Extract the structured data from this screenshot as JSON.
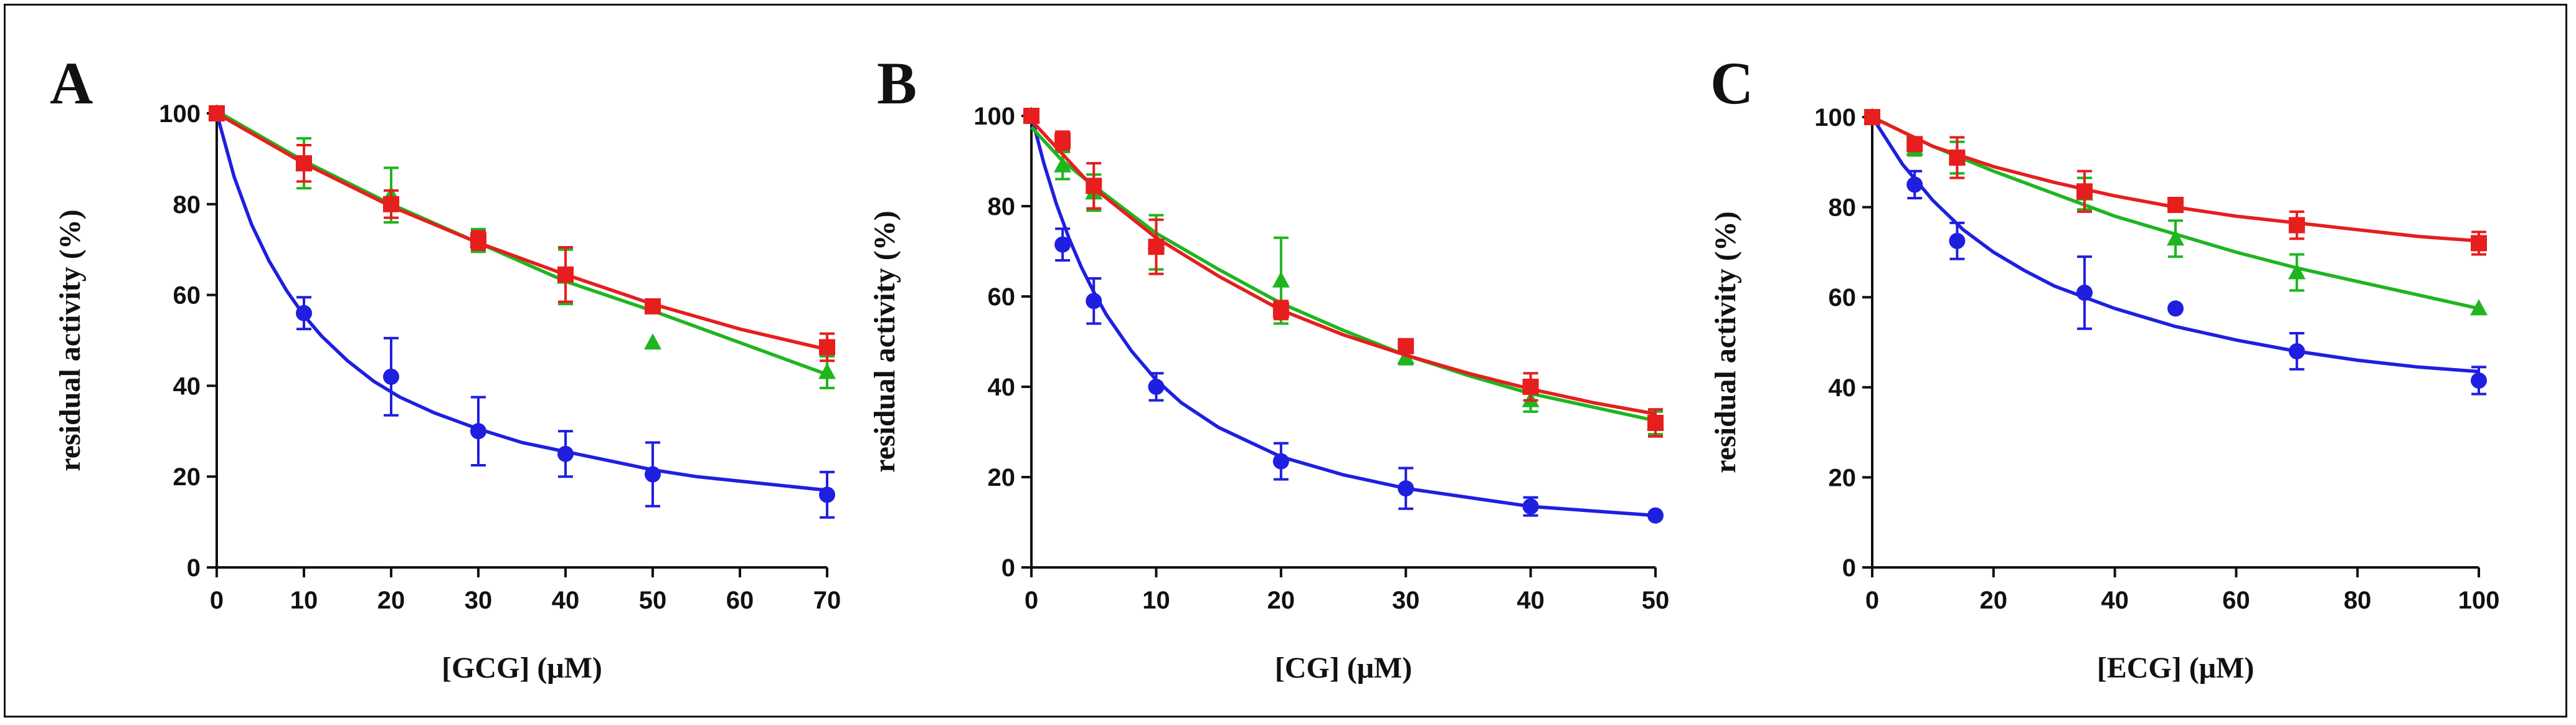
{
  "colors": {
    "blue": "#1f1fe0",
    "red": "#e61e1e",
    "green": "#1fb51f"
  },
  "chart_data": [
    {
      "panel": "A",
      "type": "scatter",
      "xlabel": "[GCG] (μM)",
      "ylabel": "residual activity (%)",
      "xlim": [
        0,
        70
      ],
      "ylim": [
        0,
        100
      ],
      "xticks": [
        0,
        10,
        20,
        30,
        40,
        50,
        60,
        70
      ],
      "xtick_labels": [
        "0",
        "10",
        "20",
        "30",
        "40",
        "50",
        "60",
        "70"
      ],
      "yticks": [
        0,
        20,
        40,
        60,
        80,
        100
      ],
      "ytick_labels": [
        "0",
        "20",
        "40",
        "60",
        "80",
        "100"
      ],
      "series": [
        {
          "color": "blue",
          "marker": "circle",
          "points": [
            [
              0,
              100,
              0
            ],
            [
              10,
              56,
              3.5
            ],
            [
              20,
              42,
              8.5
            ],
            [
              30,
              30,
              7.5
            ],
            [
              40,
              25,
              5
            ],
            [
              50,
              20.5,
              7
            ],
            [
              70,
              16,
              5
            ]
          ],
          "fit": [
            [
              0,
              100
            ],
            [
              2,
              86
            ],
            [
              4,
              75.5
            ],
            [
              6,
              67.5
            ],
            [
              8,
              61
            ],
            [
              10,
              55.5
            ],
            [
              12,
              51
            ],
            [
              15,
              45.5
            ],
            [
              18,
              41
            ],
            [
              21,
              37.5
            ],
            [
              25,
              34
            ],
            [
              30,
              30.5
            ],
            [
              35,
              27.5
            ],
            [
              40,
              25.5
            ],
            [
              45,
              23.5
            ],
            [
              50,
              21.5
            ],
            [
              55,
              20
            ],
            [
              60,
              19
            ],
            [
              65,
              18
            ],
            [
              70,
              17
            ]
          ]
        },
        {
          "color": "green",
          "marker": "triangle",
          "points": [
            [
              0,
              100,
              0
            ],
            [
              10,
              89,
              5.5
            ],
            [
              20,
              82,
              6
            ],
            [
              30,
              72,
              2.5
            ],
            [
              40,
              64,
              6
            ],
            [
              50,
              49.5,
              0
            ],
            [
              70,
              43,
              3.5
            ]
          ],
          "fit": [
            [
              0,
              100.5
            ],
            [
              10,
              89.5
            ],
            [
              20,
              80
            ],
            [
              30,
              71.5
            ],
            [
              40,
              63
            ],
            [
              50,
              56.5
            ],
            [
              60,
              49.5
            ],
            [
              70,
              42.5
            ]
          ]
        },
        {
          "color": "red",
          "marker": "square",
          "points": [
            [
              0,
              100,
              0
            ],
            [
              10,
              89,
              4
            ],
            [
              20,
              80,
              3
            ],
            [
              30,
              72,
              2
            ],
            [
              40,
              64.5,
              6
            ],
            [
              50,
              57.5,
              0
            ],
            [
              70,
              48.5,
              3
            ]
          ],
          "fit": [
            [
              0,
              100
            ],
            [
              10,
              89
            ],
            [
              20,
              79.5
            ],
            [
              30,
              71.5
            ],
            [
              40,
              64.5
            ],
            [
              50,
              58
            ],
            [
              60,
              52.5
            ],
            [
              70,
              48
            ]
          ]
        }
      ]
    },
    {
      "panel": "B",
      "type": "scatter",
      "xlabel": "[CG] (μM)",
      "ylabel": "residual activity (%)",
      "xlim": [
        0,
        50
      ],
      "ylim": [
        0,
        100
      ],
      "xticks": [
        0,
        10,
        20,
        30,
        40,
        50
      ],
      "xtick_labels": [
        "0",
        "10",
        "20",
        "30",
        "40",
        "50"
      ],
      "yticks": [
        0,
        20,
        40,
        60,
        80,
        100
      ],
      "ytick_labels": [
        "0",
        "20",
        "40",
        "60",
        "80",
        "100"
      ],
      "series": [
        {
          "color": "blue",
          "marker": "circle",
          "points": [
            [
              0,
              100,
              0
            ],
            [
              2.5,
              71.5,
              3.5
            ],
            [
              5,
              59,
              5
            ],
            [
              10,
              40,
              3
            ],
            [
              20,
              23.5,
              4
            ],
            [
              30,
              17.5,
              4.5
            ],
            [
              40,
              13.5,
              2
            ],
            [
              50,
              11.5,
              0
            ]
          ],
          "fit": [
            [
              0,
              100
            ],
            [
              1,
              89.5
            ],
            [
              2,
              80.5
            ],
            [
              3,
              73
            ],
            [
              4,
              66.5
            ],
            [
              5,
              61
            ],
            [
              6,
              56
            ],
            [
              8,
              48
            ],
            [
              10,
              41.5
            ],
            [
              12,
              36.5
            ],
            [
              15,
              31
            ],
            [
              20,
              24.5
            ],
            [
              25,
              20.5
            ],
            [
              30,
              17.5
            ],
            [
              35,
              15.5
            ],
            [
              40,
              13.5
            ],
            [
              45,
              12.5
            ],
            [
              50,
              11.5
            ]
          ]
        },
        {
          "color": "green",
          "marker": "triangle",
          "points": [
            [
              0,
              100,
              0
            ],
            [
              2.5,
              89,
              3
            ],
            [
              5,
              83,
              4
            ],
            [
              10,
              72,
              6
            ],
            [
              20,
              63.5,
              9.5
            ],
            [
              30,
              46.5,
              1.5
            ],
            [
              40,
              37,
              2.5
            ],
            [
              50,
              32,
              2.5
            ]
          ],
          "fit": [
            [
              0,
              97.5
            ],
            [
              2.5,
              90
            ],
            [
              5,
              84.5
            ],
            [
              10,
              74
            ],
            [
              15,
              66
            ],
            [
              20,
              58.5
            ],
            [
              25,
              52.5
            ],
            [
              30,
              47
            ],
            [
              35,
              42.5
            ],
            [
              40,
              38.5
            ],
            [
              45,
              35.5
            ],
            [
              50,
              32.5
            ]
          ]
        },
        {
          "color": "red",
          "marker": "square",
          "points": [
            [
              0,
              100,
              0
            ],
            [
              2.5,
              94.5,
              2
            ],
            [
              5,
              84.5,
              5
            ],
            [
              10,
              71,
              6
            ],
            [
              20,
              57,
              2
            ],
            [
              30,
              49,
              1.5
            ],
            [
              40,
              40,
              3
            ],
            [
              50,
              32,
              3
            ]
          ],
          "fit": [
            [
              0,
              99
            ],
            [
              2.5,
              91.5
            ],
            [
              5,
              84
            ],
            [
              10,
              73
            ],
            [
              15,
              64.5
            ],
            [
              20,
              57
            ],
            [
              25,
              51.5
            ],
            [
              30,
              47
            ],
            [
              35,
              43
            ],
            [
              40,
              39.5
            ],
            [
              45,
              36.5
            ],
            [
              50,
              34
            ]
          ]
        }
      ]
    },
    {
      "panel": "C",
      "type": "scatter",
      "xlabel": "[ECG] (μM)",
      "ylabel": "residual activity (%)",
      "xlim": [
        0,
        100
      ],
      "ylim": [
        0,
        100
      ],
      "xticks": [
        0,
        20,
        40,
        60,
        80,
        100
      ],
      "xtick_labels": [
        "0",
        "20",
        "40",
        "60",
        "80",
        "100"
      ],
      "yticks": [
        0,
        20,
        40,
        60,
        80,
        100
      ],
      "ytick_labels": [
        "0",
        "20",
        "40",
        "60",
        "80",
        "100"
      ],
      "series": [
        {
          "color": "blue",
          "marker": "circle",
          "points": [
            [
              0,
              100,
              0
            ],
            [
              7,
              85,
              3
            ],
            [
              14,
              72.5,
              4
            ],
            [
              35,
              61,
              8
            ],
            [
              50,
              57.5,
              0
            ],
            [
              70,
              48,
              4
            ],
            [
              100,
              41.5,
              3
            ]
          ],
          "fit": [
            [
              0,
              100
            ],
            [
              5,
              89.5
            ],
            [
              10,
              81.5
            ],
            [
              15,
              75
            ],
            [
              20,
              70
            ],
            [
              25,
              66
            ],
            [
              30,
              62.5
            ],
            [
              40,
              57.5
            ],
            [
              50,
              53.5
            ],
            [
              60,
              50.5
            ],
            [
              70,
              48
            ],
            [
              80,
              46
            ],
            [
              90,
              44.5
            ],
            [
              100,
              43.5
            ]
          ]
        },
        {
          "color": "green",
          "marker": "triangle",
          "points": [
            [
              0,
              100,
              0
            ],
            [
              7,
              93,
              1.5
            ],
            [
              14,
              91,
              3.5
            ],
            [
              35,
              83,
              3.5
            ],
            [
              50,
              73,
              4
            ],
            [
              70,
              65.5,
              4
            ],
            [
              100,
              57.5,
              0
            ]
          ],
          "fit": [
            [
              0,
              100
            ],
            [
              10,
              93.5
            ],
            [
              20,
              88
            ],
            [
              30,
              83
            ],
            [
              40,
              78
            ],
            [
              50,
              74
            ],
            [
              60,
              70
            ],
            [
              70,
              66.5
            ],
            [
              80,
              63.5
            ],
            [
              90,
              60.5
            ],
            [
              100,
              57.5
            ]
          ]
        },
        {
          "color": "red",
          "marker": "square",
          "points": [
            [
              0,
              100,
              0
            ],
            [
              7,
              94,
              1.5
            ],
            [
              14,
              91,
              4.5
            ],
            [
              35,
              83.5,
              4.5
            ],
            [
              50,
              80.5,
              1.5
            ],
            [
              70,
              76,
              3
            ],
            [
              100,
              72,
              2.5
            ]
          ],
          "fit": [
            [
              0,
              100
            ],
            [
              10,
              93.5
            ],
            [
              20,
              89
            ],
            [
              30,
              85.5
            ],
            [
              40,
              82.5
            ],
            [
              50,
              80
            ],
            [
              60,
              78
            ],
            [
              70,
              76.5
            ],
            [
              80,
              75
            ],
            [
              90,
              73.5
            ],
            [
              100,
              72.5
            ]
          ]
        }
      ]
    }
  ]
}
